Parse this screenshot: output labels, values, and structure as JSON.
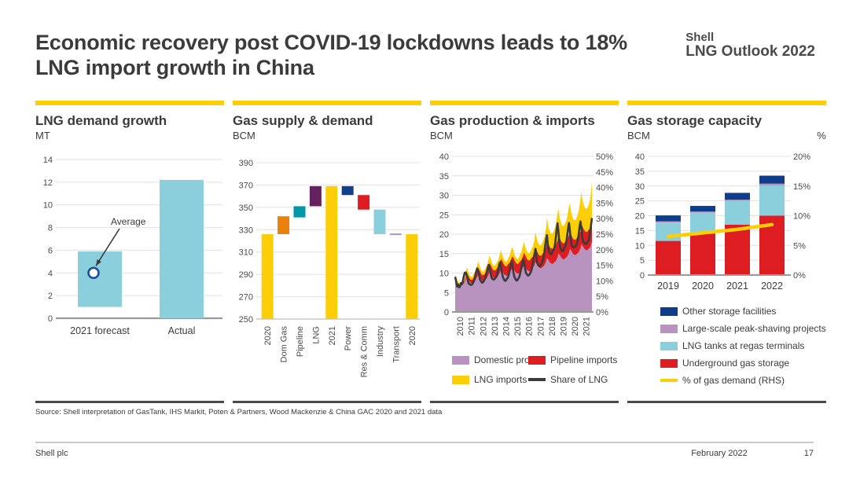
{
  "header": {
    "title": "Economic recovery post COVID-19 lockdowns leads to 18% LNG import growth in China",
    "brand_line1": "Shell",
    "brand_line2": "LNG Outlook 2022"
  },
  "source": "Source: Shell interpretation of GasTank, IHS Markit, Poten & Partners, Wood Mackenzie & China GAC 2020 and 2021 data",
  "footer": {
    "company": "Shell plc",
    "date": "February 2022",
    "page": "17"
  },
  "colors": {
    "accent_yellow": "#FBCE07",
    "separator_dark": "#4A4A4A",
    "grid": "#E0E0E0",
    "axis": "#9A9A9A",
    "text_dark": "#3B3B3B"
  },
  "chart_data": [
    {
      "id": "lng-demand-growth",
      "type": "bar",
      "title": "LNG demand growth",
      "unit": "MT",
      "ylim": [
        0,
        14
      ],
      "yticks": [
        0,
        2,
        4,
        6,
        8,
        10,
        12,
        14
      ],
      "bar_color": "#8CCFDC",
      "categories": [
        "2021 forecast",
        "Actual"
      ],
      "bars": [
        {
          "category": "2021 forecast",
          "from": 1.0,
          "to": 5.9
        },
        {
          "category": "Actual",
          "from": 0,
          "to": 12.2
        }
      ],
      "annotation": {
        "label": "Average",
        "value": 4.0,
        "on_category": "2021 forecast",
        "marker_stroke": "#1B4F9C",
        "marker_fill": "#FFFFFF"
      }
    },
    {
      "id": "gas-supply-demand",
      "type": "waterfall",
      "title": "Gas supply & demand",
      "unit": "BCM",
      "ylim": [
        250,
        390
      ],
      "yticks": [
        250,
        270,
        290,
        310,
        330,
        350,
        370,
        390
      ],
      "bars": [
        {
          "label": "2020",
          "from": 250,
          "to": 326,
          "color": "#FBCE07"
        },
        {
          "label": "Dom Gas",
          "from": 326,
          "to": 342,
          "color": "#E8820C"
        },
        {
          "label": "Pipeline",
          "from": 341,
          "to": 351,
          "color": "#0097A9"
        },
        {
          "label": "LNG",
          "from": 351,
          "to": 369,
          "color": "#65215D"
        },
        {
          "label": "2021",
          "from": 250,
          "to": 369,
          "color": "#FBCE07"
        },
        {
          "label": "Power",
          "from": 361,
          "to": 369,
          "color": "#11418D"
        },
        {
          "label": "Res & Comm",
          "from": 348,
          "to": 361,
          "color": "#DD1D21"
        },
        {
          "label": "Industry",
          "from": 326,
          "to": 348,
          "color": "#8CCFDC"
        },
        {
          "label": "Transport",
          "from": 325.2,
          "to": 326.6,
          "color": "#A79BC0"
        },
        {
          "label": "2020",
          "from": 250,
          "to": 326,
          "color": "#FBCE07"
        }
      ]
    },
    {
      "id": "gas-production-imports",
      "type": "stacked_area_line",
      "title": "Gas production & imports",
      "unit": "BCM",
      "ylim_left": [
        0,
        40
      ],
      "yticks_left": [
        0,
        5,
        10,
        15,
        20,
        25,
        30,
        35,
        40
      ],
      "ylim_right": [
        0,
        50
      ],
      "yticks_right": [
        0,
        5,
        10,
        15,
        20,
        25,
        30,
        35,
        40,
        45,
        50
      ],
      "right_suffix": "%",
      "x_labels": [
        "2010",
        "2011",
        "2012",
        "2013",
        "2014",
        "2015",
        "2016",
        "2017",
        "2018",
        "2019",
        "2020",
        "2021"
      ],
      "series": [
        {
          "name": "Domestic prod",
          "color": "#B893BF",
          "values": [
            8.2,
            7.8,
            7.5,
            7.0,
            6.8,
            6.7,
            6.6,
            6.9,
            7.1,
            7.3,
            7.8,
            8.3,
            8.9,
            8.5,
            8.2,
            7.7,
            7.5,
            7.4,
            7.3,
            7.6,
            7.8,
            8.0,
            8.5,
            9.0,
            9.5,
            9.1,
            8.8,
            8.3,
            8.1,
            8.0,
            7.9,
            8.2,
            8.4,
            8.6,
            9.1,
            9.6,
            10.2,
            9.8,
            9.5,
            9.0,
            8.8,
            8.7,
            8.6,
            8.9,
            9.1,
            9.3,
            9.8,
            10.3,
            10.9,
            10.5,
            10.2,
            9.7,
            9.5,
            9.4,
            9.3,
            9.6,
            9.8,
            10.0,
            10.5,
            11.0,
            11.4,
            11.0,
            10.7,
            10.2,
            10.0,
            9.9,
            9.8,
            10.1,
            10.3,
            10.5,
            11.0,
            11.5,
            12.0,
            11.6,
            11.3,
            10.8,
            10.6,
            10.5,
            10.4,
            10.7,
            10.9,
            11.1,
            11.6,
            12.1,
            12.8,
            12.4,
            12.1,
            11.6,
            11.4,
            11.3,
            11.2,
            11.5,
            11.7,
            11.9,
            12.4,
            12.9,
            13.9,
            13.5,
            13.2,
            12.7,
            12.5,
            12.4,
            12.3,
            12.6,
            12.8,
            13.0,
            13.5,
            14.0,
            15.1,
            14.7,
            14.4,
            13.9,
            13.7,
            13.6,
            13.5,
            13.8,
            14.0,
            14.2,
            14.7,
            15.2,
            16.2,
            15.8,
            15.5,
            15.0,
            14.8,
            14.7,
            14.6,
            14.9,
            15.1,
            15.3,
            15.8,
            16.3,
            17.4,
            17.0,
            16.7,
            16.2,
            16.0,
            15.9,
            15.8,
            16.1,
            16.3,
            16.5,
            17.2,
            18.0
          ]
        },
        {
          "name": "Pipeline imports",
          "color": "#DD1D21",
          "values": [
            0.4,
            0.4,
            0.3,
            0.2,
            0.2,
            0.1,
            0.2,
            0.3,
            0.3,
            0.4,
            0.5,
            0.6,
            1.4,
            1.3,
            1.1,
            1.0,
            0.9,
            0.9,
            1.0,
            1.1,
            1.2,
            1.2,
            1.3,
            1.4,
            2.0,
            1.9,
            1.7,
            1.6,
            1.5,
            1.5,
            1.6,
            1.7,
            1.8,
            1.8,
            1.9,
            2.0,
            2.5,
            2.4,
            2.2,
            2.1,
            2.0,
            2.0,
            2.1,
            2.2,
            2.3,
            2.3,
            2.4,
            2.5,
            2.9,
            2.8,
            2.6,
            2.5,
            2.4,
            2.4,
            2.5,
            2.6,
            2.7,
            2.7,
            2.8,
            2.9,
            3.0,
            2.9,
            2.7,
            2.6,
            2.5,
            2.5,
            2.6,
            2.7,
            2.8,
            2.8,
            2.9,
            3.0,
            3.3,
            3.2,
            3.0,
            2.9,
            2.8,
            2.8,
            2.9,
            3.0,
            3.1,
            3.1,
            3.2,
            3.3,
            3.7,
            3.6,
            3.4,
            3.3,
            3.2,
            3.2,
            3.3,
            3.4,
            3.5,
            3.5,
            3.6,
            3.7,
            4.4,
            4.3,
            4.1,
            4.0,
            3.9,
            3.9,
            4.0,
            4.1,
            4.2,
            4.2,
            4.3,
            4.4,
            4.6,
            4.5,
            4.3,
            4.2,
            4.1,
            4.1,
            4.2,
            4.3,
            4.4,
            4.4,
            4.5,
            4.6,
            4.4,
            4.3,
            4.1,
            4.0,
            3.9,
            3.9,
            4.0,
            4.1,
            4.2,
            4.2,
            4.3,
            4.4,
            5.2,
            5.1,
            4.9,
            4.8,
            4.7,
            4.7,
            4.8,
            4.9,
            5.0,
            5.0,
            5.1,
            5.4
          ]
        },
        {
          "name": "LNG imports",
          "color": "#FBCE07",
          "values": [
            1.1,
            0.9,
            0.7,
            0.7,
            0.6,
            0.6,
            0.7,
            0.7,
            0.8,
            1.0,
            1.2,
            1.3,
            1.3,
            1.1,
            0.9,
            0.8,
            0.8,
            0.8,
            0.8,
            0.9,
            1.0,
            1.2,
            1.4,
            1.6,
            1.6,
            1.3,
            1.1,
            1.0,
            0.9,
            0.9,
            1.0,
            1.1,
            1.2,
            1.4,
            1.7,
            1.9,
            1.9,
            1.6,
            1.3,
            1.2,
            1.2,
            1.2,
            1.3,
            1.4,
            1.5,
            1.7,
            2.1,
            2.3,
            2.1,
            1.7,
            1.4,
            1.3,
            1.2,
            1.2,
            1.3,
            1.4,
            1.6,
            1.9,
            2.2,
            2.5,
            2.2,
            1.8,
            1.5,
            1.4,
            1.3,
            1.3,
            1.4,
            1.5,
            1.7,
            2.0,
            2.3,
            2.6,
            2.7,
            2.3,
            2.0,
            1.9,
            1.8,
            1.8,
            1.9,
            2.0,
            2.2,
            2.5,
            2.9,
            3.2,
            4.2,
            3.4,
            2.9,
            2.7,
            2.6,
            2.6,
            2.7,
            2.9,
            3.1,
            3.6,
            4.3,
            5.0,
            6.0,
            4.8,
            4.2,
            4.0,
            3.8,
            3.8,
            4.0,
            4.1,
            4.4,
            5.0,
            6.0,
            7.0,
            6.8,
            5.5,
            4.8,
            4.6,
            4.4,
            4.4,
            4.6,
            4.7,
            5.0,
            5.7,
            6.6,
            7.5,
            7.3,
            6.0,
            5.4,
            5.1,
            5.0,
            5.0,
            5.1,
            5.3,
            5.6,
            6.3,
            7.2,
            8.2,
            8.3,
            7.0,
            6.3,
            6.1,
            5.9,
            5.9,
            6.1,
            6.2,
            6.6,
            7.4,
            8.6,
            10.2
          ]
        }
      ],
      "line": {
        "name": "Share of LNG",
        "color": "#3B3B3B",
        "axis": "right",
        "values": [
          11.3,
          9.9,
          8.2,
          8.9,
          7.9,
          8.1,
          9.3,
          8.9,
          9.8,
          11.5,
          12.6,
          12.7,
          11.9,
          10.7,
          9.2,
          9.0,
          8.7,
          8.7,
          9.0,
          9.5,
          10.4,
          11.8,
          13.0,
          14.0,
          13.3,
          12.0,
          10.4,
          9.9,
          9.4,
          9.5,
          10.0,
          10.5,
          11.4,
          12.8,
          14.2,
          15.1,
          14.0,
          12.7,
          11.1,
          10.6,
          10.4,
          10.5,
          10.9,
          11.3,
          11.9,
          13.4,
          15.3,
          16.0,
          14.5,
          12.5,
          11.1,
          10.5,
          10.0,
          10.1,
          10.6,
          11.0,
          11.9,
          13.4,
          15.0,
          16.4,
          14.6,
          12.6,
          11.2,
          10.6,
          10.1,
          10.2,
          10.7,
          11.1,
          12.4,
          13.9,
          15.4,
          16.8,
          16.1,
          14.1,
          12.6,
          12.1,
          11.7,
          11.8,
          12.2,
          12.7,
          13.6,
          15.4,
          17.3,
          18.8,
          20.3,
          17.5,
          15.6,
          15.0,
          14.7,
          14.8,
          15.2,
          16.0,
          16.8,
          18.7,
          21.1,
          23.3,
          24.7,
          21.3,
          19.5,
          18.9,
          18.6,
          18.7,
          19.7,
          20.0,
          20.9,
          23.2,
          26.4,
          28.5,
          25.7,
          22.3,
          20.4,
          19.9,
          19.6,
          19.7,
          20.6,
          20.9,
          21.9,
          24.3,
          26.7,
          28.6,
          26.1,
          22.8,
          21.4,
          20.8,
          20.8,
          20.9,
          21.2,
          21.7,
          22.6,
          24.8,
          27.2,
          29.1,
          26.9,
          23.9,
          22.5,
          22.2,
          21.9,
          21.9,
          22.4,
          22.6,
          23.5,
          25.5,
          27.8,
          30.2
        ]
      }
    },
    {
      "id": "gas-storage-capacity",
      "type": "stacked_bar_line",
      "title": "Gas storage capacity",
      "unit": "BCM",
      "unit_right": "%",
      "ylim_left": [
        0,
        40
      ],
      "yticks_left": [
        0,
        5,
        10,
        15,
        20,
        25,
        30,
        35,
        40
      ],
      "ylim_right": [
        0,
        20
      ],
      "yticks_right": [
        0,
        5,
        10,
        15,
        20
      ],
      "right_suffix": "%",
      "categories": [
        "2019",
        "2020",
        "2021",
        "2022"
      ],
      "series": [
        {
          "name": "Underground gas storage",
          "color": "#DD1D21",
          "values": [
            11.5,
            14.0,
            17.0,
            20.0
          ]
        },
        {
          "name": "LNG tanks at regas terminals",
          "color": "#8CCFDC",
          "values": [
            6.2,
            7.0,
            8.0,
            10.2
          ]
        },
        {
          "name": "Large-scale peak-shaving projects",
          "color": "#B893BF",
          "values": [
            0.4,
            0.4,
            0.4,
            0.6
          ]
        },
        {
          "name": "Other storage facilities",
          "color": "#0F3D8A",
          "values": [
            2.0,
            1.9,
            2.3,
            2.7
          ]
        }
      ],
      "line": {
        "name": "% of gas demand (RHS)",
        "color": "#FBCE07",
        "axis": "right",
        "values": [
          6.5,
          7.1,
          7.7,
          8.5
        ]
      },
      "legend_order": [
        "Other storage facilities",
        "Large-scale peak-shaving projects",
        "LNG tanks at regas terminals",
        "Underground gas storage",
        "% of gas demand (RHS)"
      ]
    }
  ]
}
